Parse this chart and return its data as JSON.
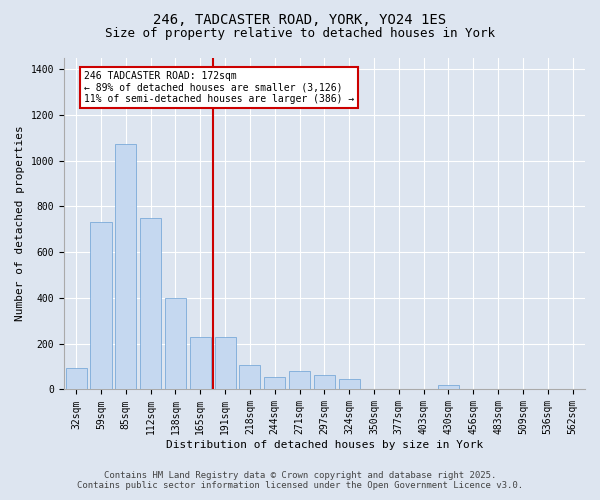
{
  "title_line1": "246, TADCASTER ROAD, YORK, YO24 1ES",
  "title_line2": "Size of property relative to detached houses in York",
  "xlabel": "Distribution of detached houses by size in York",
  "ylabel": "Number of detached properties",
  "categories": [
    "32sqm",
    "59sqm",
    "85sqm",
    "112sqm",
    "138sqm",
    "165sqm",
    "191sqm",
    "218sqm",
    "244sqm",
    "271sqm",
    "297sqm",
    "324sqm",
    "350sqm",
    "377sqm",
    "403sqm",
    "430sqm",
    "456sqm",
    "483sqm",
    "509sqm",
    "536sqm",
    "562sqm"
  ],
  "values": [
    95,
    730,
    1070,
    750,
    400,
    230,
    230,
    105,
    55,
    80,
    65,
    45,
    0,
    0,
    0,
    20,
    0,
    0,
    0,
    0,
    0
  ],
  "bar_color": "#c5d8f0",
  "bar_edge_color": "#6aa0d4",
  "vline_color": "#cc0000",
  "annotation_text": "246 TADCASTER ROAD: 172sqm\n← 89% of detached houses are smaller (3,126)\n11% of semi-detached houses are larger (386) →",
  "annotation_box_color": "#cc0000",
  "ylim": [
    0,
    1450
  ],
  "yticks": [
    0,
    200,
    400,
    600,
    800,
    1000,
    1200,
    1400
  ],
  "footer_line1": "Contains HM Land Registry data © Crown copyright and database right 2025.",
  "footer_line2": "Contains public sector information licensed under the Open Government Licence v3.0.",
  "bg_color": "#dde5f0",
  "plot_bg_color": "#dde5f0",
  "grid_color": "#ffffff",
  "title_fontsize": 10,
  "subtitle_fontsize": 9,
  "axis_label_fontsize": 8,
  "tick_fontsize": 7,
  "footer_fontsize": 6.5
}
